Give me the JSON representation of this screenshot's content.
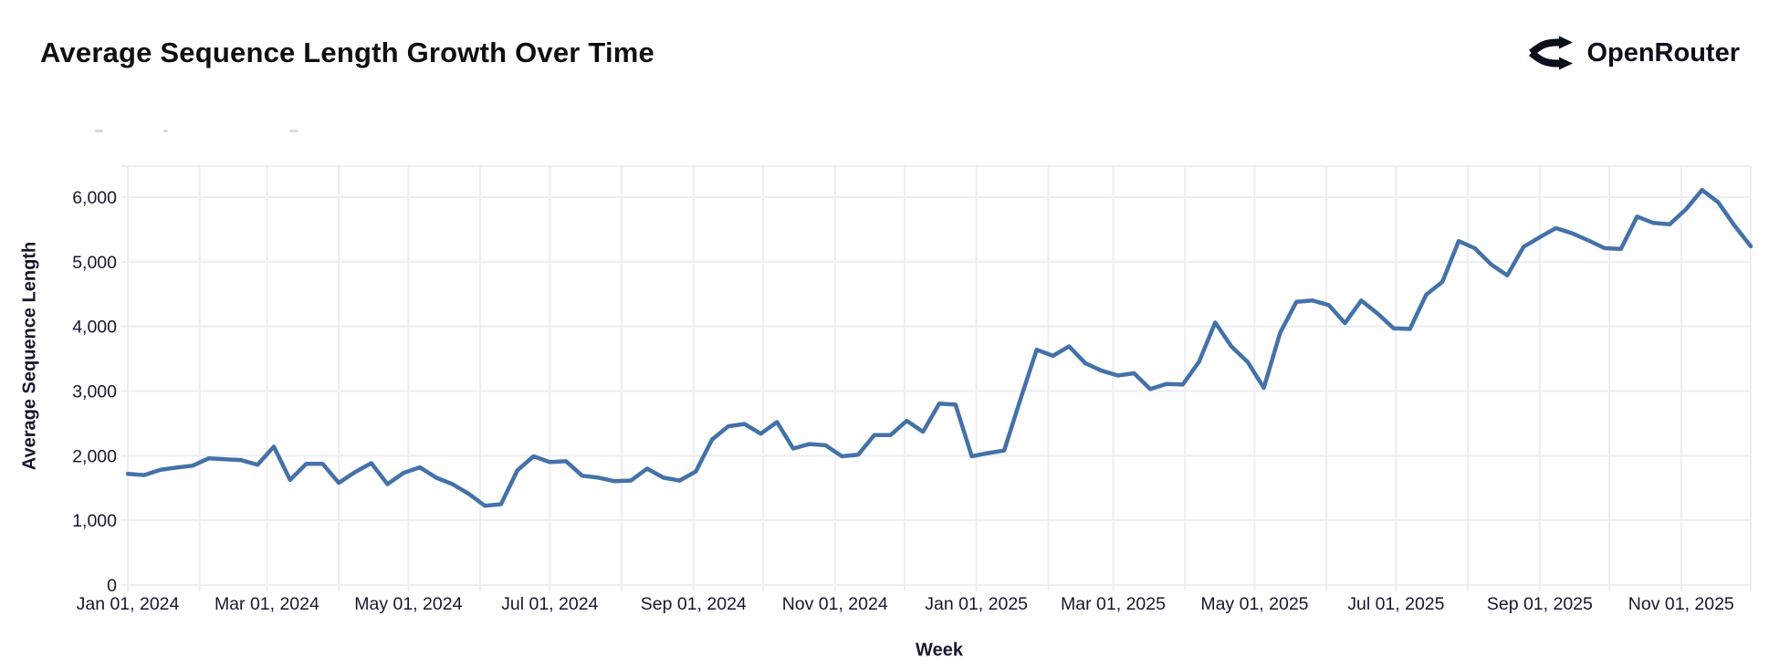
{
  "header": {
    "brand": "OpenRouter"
  },
  "chart_data": {
    "type": "line",
    "title": "Average Sequence Length Growth Over Time",
    "xlabel": "Week",
    "ylabel": "Average Sequence Length",
    "series_name": "Average Sequence Length",
    "start_date": "Jan 01, 2024",
    "frequency": "weekly",
    "line_color": "#4472A8",
    "grid_color": "#ECEEF4",
    "label_color": "#16182D",
    "legend_position": "none",
    "grid": true,
    "ylim": [
      0,
      6480
    ],
    "y_ticks": [
      0,
      1000,
      2000,
      3000,
      4000,
      5000,
      6000
    ],
    "x_domain_days": [
      0,
      700
    ],
    "x_gridline_days": [
      0,
      31,
      60,
      91,
      121,
      152,
      182,
      213,
      244,
      274,
      305,
      335,
      366,
      397,
      425,
      456,
      486,
      517,
      547,
      578,
      609,
      639,
      670
    ],
    "x_tick_labels": [
      {
        "day": 0,
        "label": "Jan 01, 2024"
      },
      {
        "day": 60,
        "label": "Mar 01, 2024"
      },
      {
        "day": 121,
        "label": "May 01, 2024"
      },
      {
        "day": 182,
        "label": "Jul 01, 2024"
      },
      {
        "day": 244,
        "label": "Sep 01, 2024"
      },
      {
        "day": 305,
        "label": "Nov 01, 2024"
      },
      {
        "day": 366,
        "label": "Jan 01, 2025"
      },
      {
        "day": 425,
        "label": "Mar 01, 2025"
      },
      {
        "day": 486,
        "label": "May 01, 2025"
      },
      {
        "day": 547,
        "label": "Jul 01, 2025"
      },
      {
        "day": 609,
        "label": "Sep 01, 2025"
      },
      {
        "day": 670,
        "label": "Nov 01, 2025"
      }
    ],
    "values": [
      1720,
      1700,
      1780,
      1815,
      1845,
      1960,
      1945,
      1930,
      1860,
      2140,
      1625,
      1875,
      1875,
      1580,
      1745,
      1885,
      1560,
      1735,
      1820,
      1660,
      1560,
      1410,
      1225,
      1250,
      1770,
      1990,
      1900,
      1915,
      1690,
      1660,
      1605,
      1615,
      1800,
      1660,
      1615,
      1755,
      2250,
      2455,
      2490,
      2340,
      2520,
      2110,
      2180,
      2160,
      1990,
      2015,
      2320,
      2320,
      2540,
      2370,
      2805,
      2790,
      1990,
      2040,
      2080,
      2870,
      3640,
      3545,
      3690,
      3430,
      3315,
      3240,
      3275,
      3030,
      3110,
      3100,
      3450,
      4060,
      3690,
      3450,
      3050,
      3900,
      4380,
      4400,
      4330,
      4050,
      4400,
      4200,
      3970,
      3960,
      4490,
      4690,
      5320,
      5210,
      4960,
      4790,
      5230,
      5380,
      5520,
      5440,
      5330,
      5210,
      5200,
      5700,
      5600,
      5580,
      5810,
      6110,
      5920,
      5560,
      5240
    ]
  }
}
